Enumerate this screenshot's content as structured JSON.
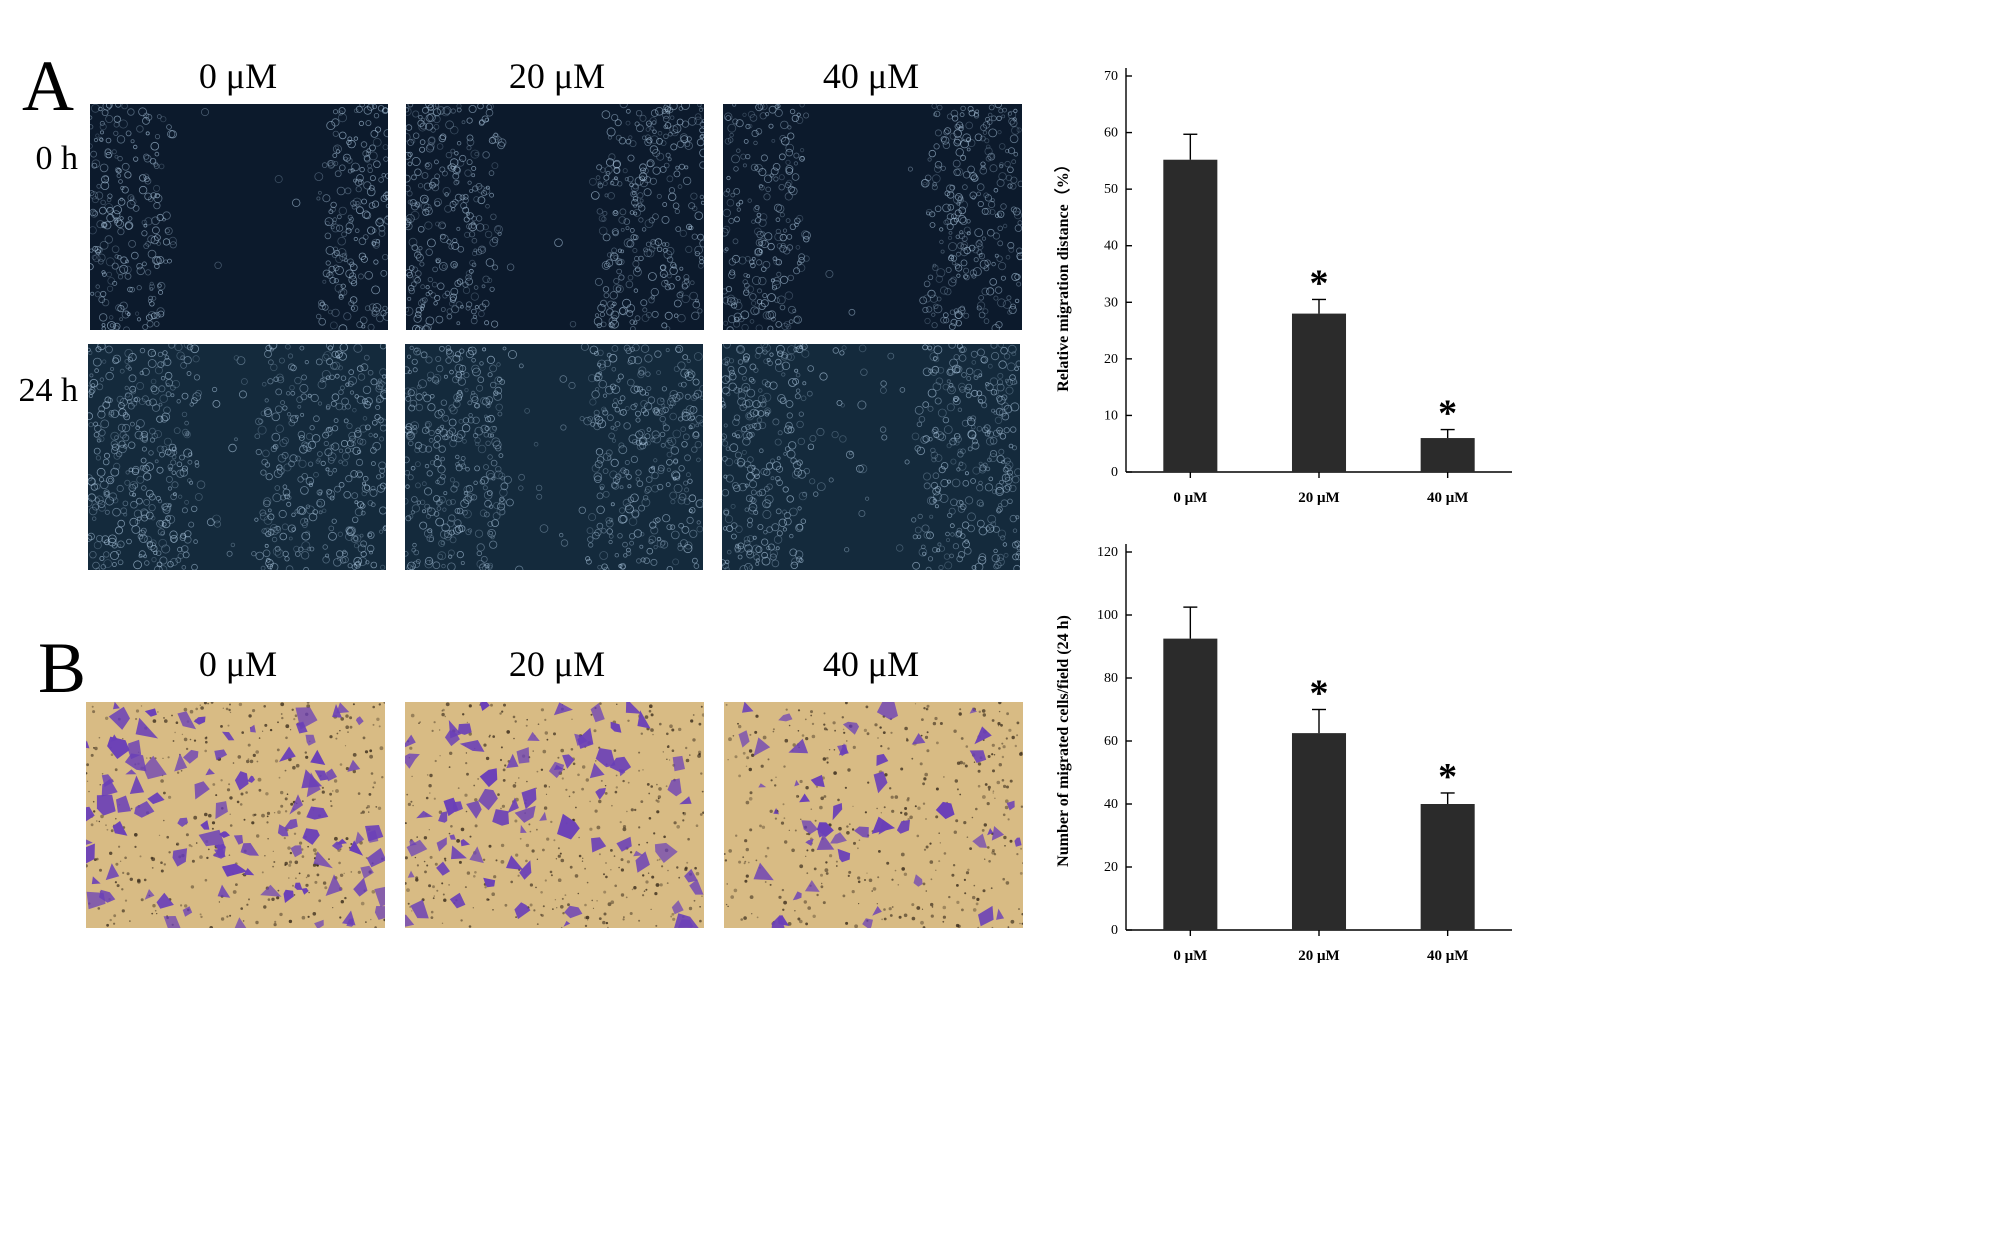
{
  "panel_labels": {
    "a": "A",
    "b": "B"
  },
  "panel_a": {
    "concentrations": [
      "0 μM",
      "20 μM",
      "40 μM"
    ],
    "timepoints": [
      "0 h",
      "24 h"
    ]
  },
  "panel_b": {
    "concentrations": [
      "0 μM",
      "20 μM",
      "40 μM"
    ]
  },
  "colors": {
    "scratch_background": "#0c1a2c",
    "scratch_background_24h": "#142a3c",
    "cell_dot": "#a9c4dc",
    "transwell_background": "#d8bb84",
    "transwell_cell": "#6a3fb8",
    "bar_fill": "#2b2b2b",
    "axis": "#000000"
  },
  "chart_data": [
    {
      "type": "bar",
      "title": "",
      "xlabel": "",
      "ylabel": "Relative migration distance（%）",
      "categories": [
        "0 μM",
        "20 μM",
        "40 μM"
      ],
      "values": [
        55.2,
        28,
        6
      ],
      "error": [
        4.5,
        2.5,
        1.5
      ],
      "significance": [
        "",
        "*",
        "*"
      ],
      "ylim": [
        0,
        70
      ],
      "yticks": [
        0,
        10,
        20,
        30,
        40,
        50,
        60,
        70
      ],
      "grid": false,
      "legend": "none"
    },
    {
      "type": "bar",
      "title": "",
      "xlabel": "",
      "ylabel": "Number of migrated cells/field (24 h)",
      "categories": [
        "0 μM",
        "20 μM",
        "40 μM"
      ],
      "values": [
        92.5,
        62.5,
        40
      ],
      "error": [
        10,
        7.5,
        3.5
      ],
      "significance": [
        "",
        "*",
        "*"
      ],
      "ylim": [
        0,
        120
      ],
      "yticks": [
        0,
        20,
        40,
        60,
        80,
        100,
        120
      ],
      "grid": false,
      "legend": "none"
    }
  ]
}
